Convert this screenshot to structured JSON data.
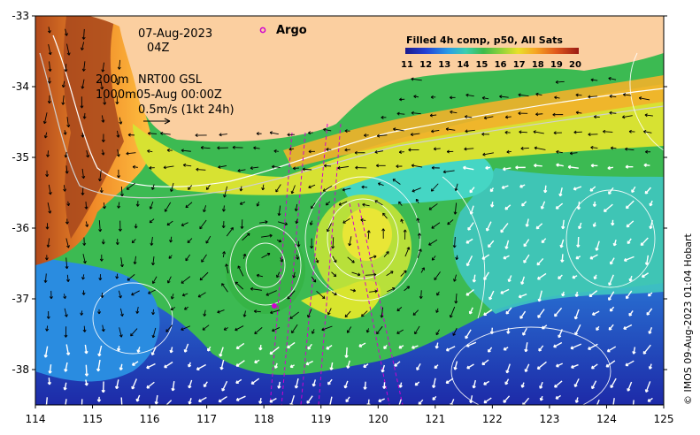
{
  "map": {
    "date": "07-Aug-2023",
    "hour": "04Z",
    "depth_shallow": "200m",
    "depth_deep": "1000m",
    "altimetry_product": "NRT00 GSL",
    "altimetry_time": "05-Aug 00:00Z",
    "velocity_scale": "0.5m/s (1kt 24h)",
    "argo_label": "Argo",
    "credit": "© IMOS 09-Aug-2023 01:04 Hobart"
  },
  "colorbar": {
    "title": "Filled 4h comp, p50, All Sats",
    "ticks": [
      "11",
      "12",
      "13",
      "14",
      "15",
      "16",
      "17",
      "18",
      "19",
      "20"
    ]
  },
  "axes": {
    "x_ticks": [
      "114",
      "115",
      "116",
      "117",
      "118",
      "119",
      "120",
      "121",
      "122",
      "123",
      "124",
      "125"
    ],
    "y_ticks": [
      "-33",
      "-34",
      "-35",
      "-36",
      "-37",
      "-38"
    ],
    "x_range": [
      114,
      125
    ],
    "y_range": [
      -38.5,
      -33
    ]
  },
  "colors": {
    "land": "#fbcfa0",
    "frame": "#000000"
  }
}
